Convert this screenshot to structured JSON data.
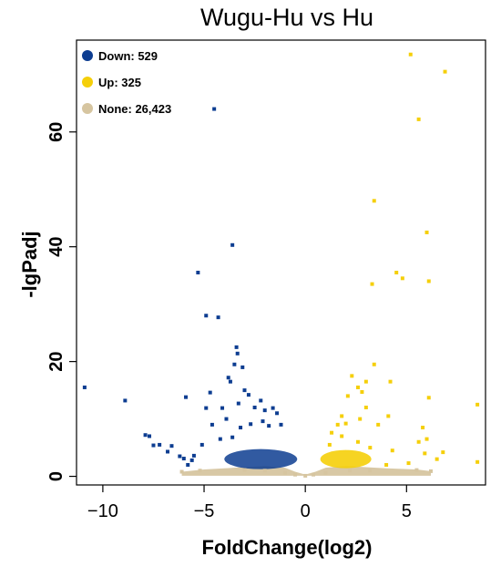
{
  "chart_data": {
    "type": "scatter",
    "title": "Wugu-Hu vs Hu",
    "xlabel": "FoldChange(log2)",
    "ylabel": "-lgPadj",
    "xlim": [
      -11.3,
      8.9
    ],
    "ylim": [
      -1.5,
      76
    ],
    "xticks": [
      -10,
      -5,
      0,
      5
    ],
    "yticks": [
      0,
      20,
      40,
      60
    ],
    "xtick_labels": [
      "−10",
      "−5",
      "0",
      "5"
    ],
    "ytick_labels": [
      "0",
      "20",
      "40",
      "60"
    ],
    "legend_position": "top-left",
    "legend": [
      {
        "label": "Down: 529",
        "color": "#0d3d91"
      },
      {
        "label": "Up: 325",
        "color": "#f5cf0a"
      },
      {
        "label": "None: 26,423",
        "color": "#d6c5a0"
      }
    ],
    "series": [
      {
        "name": "Down: 529",
        "color": "#0d3d91",
        "points": [
          [
            -10.9,
            15.5
          ],
          [
            -8.9,
            13.2
          ],
          [
            -7.9,
            7.2
          ],
          [
            -7.7,
            7.0
          ],
          [
            -7.5,
            5.4
          ],
          [
            -7.2,
            5.5
          ],
          [
            -6.8,
            4.3
          ],
          [
            -6.6,
            5.3
          ],
          [
            -6.2,
            3.5
          ],
          [
            -6.0,
            3.1
          ],
          [
            -5.8,
            2.0
          ],
          [
            -5.3,
            35.5
          ],
          [
            -4.5,
            64.0
          ],
          [
            -3.6,
            40.3
          ],
          [
            -4.9,
            28.0
          ],
          [
            -4.3,
            27.7
          ],
          [
            -3.4,
            22.5
          ],
          [
            -3.35,
            21.4
          ],
          [
            -3.5,
            19.5
          ],
          [
            -3.1,
            19.0
          ],
          [
            -3.8,
            17.2
          ],
          [
            -3.7,
            16.5
          ],
          [
            -4.7,
            14.6
          ],
          [
            -3.0,
            15.0
          ],
          [
            -2.8,
            14.2
          ],
          [
            -2.2,
            13.2
          ],
          [
            -4.9,
            11.9
          ],
          [
            -4.1,
            11.9
          ],
          [
            -3.3,
            12.7
          ],
          [
            -2.5,
            12.0
          ],
          [
            -1.6,
            11.9
          ],
          [
            -5.9,
            13.8
          ],
          [
            -1.4,
            11.0
          ],
          [
            -2.0,
            11.5
          ],
          [
            -4.6,
            9.0
          ],
          [
            -3.9,
            10.0
          ],
          [
            -5.1,
            5.5
          ],
          [
            -4.2,
            6.5
          ],
          [
            -3.6,
            6.8
          ],
          [
            -3.2,
            8.5
          ],
          [
            -2.7,
            9.1
          ],
          [
            -2.1,
            9.6
          ],
          [
            -1.8,
            8.8
          ],
          [
            -1.2,
            9.0
          ],
          [
            -5.6,
            2.8
          ],
          [
            -5.5,
            3.6
          ]
        ]
      },
      {
        "name": "Up: 325",
        "color": "#f5cf0a",
        "points": [
          [
            5.2,
            73.5
          ],
          [
            6.9,
            70.5
          ],
          [
            5.6,
            62.2
          ],
          [
            3.4,
            48.0
          ],
          [
            6.0,
            42.5
          ],
          [
            4.5,
            35.5
          ],
          [
            4.8,
            34.5
          ],
          [
            6.1,
            34.0
          ],
          [
            3.3,
            33.5
          ],
          [
            3.4,
            19.5
          ],
          [
            2.3,
            17.5
          ],
          [
            3.0,
            16.5
          ],
          [
            2.6,
            15.5
          ],
          [
            2.8,
            14.7
          ],
          [
            2.1,
            14.0
          ],
          [
            4.2,
            16.5
          ],
          [
            6.1,
            13.7
          ],
          [
            8.5,
            12.5
          ],
          [
            3.0,
            12.0
          ],
          [
            1.8,
            10.5
          ],
          [
            2.7,
            10.0
          ],
          [
            2.0,
            9.2
          ],
          [
            1.6,
            9.0
          ],
          [
            3.6,
            9.0
          ],
          [
            4.1,
            10.5
          ],
          [
            5.8,
            8.5
          ],
          [
            5.6,
            6.0
          ],
          [
            6.0,
            6.5
          ],
          [
            5.9,
            4.0
          ],
          [
            6.8,
            4.2
          ],
          [
            8.5,
            2.5
          ],
          [
            5.1,
            2.3
          ],
          [
            6.5,
            3.0
          ],
          [
            1.3,
            7.6
          ],
          [
            1.8,
            7.0
          ],
          [
            1.2,
            5.5
          ],
          [
            3.2,
            5.0
          ],
          [
            4.3,
            4.5
          ],
          [
            4.0,
            2.0
          ],
          [
            2.6,
            6.0
          ]
        ]
      },
      {
        "name": "None: 26,423",
        "color": "#d6c5a0",
        "points": [
          [
            -6.1,
            0.8
          ],
          [
            -5.2,
            1.0
          ],
          [
            5.5,
            1.1
          ],
          [
            6.2,
            0.9
          ],
          [
            -0.5,
            0.3
          ],
          [
            0.4,
            0.3
          ],
          [
            0.0,
            0.1
          ],
          [
            -1.0,
            0.6
          ],
          [
            1.0,
            0.6
          ],
          [
            -2.0,
            1.0
          ],
          [
            2.2,
            1.0
          ],
          [
            -3.0,
            1.1
          ],
          [
            3.2,
            1.0
          ]
        ]
      }
    ]
  }
}
